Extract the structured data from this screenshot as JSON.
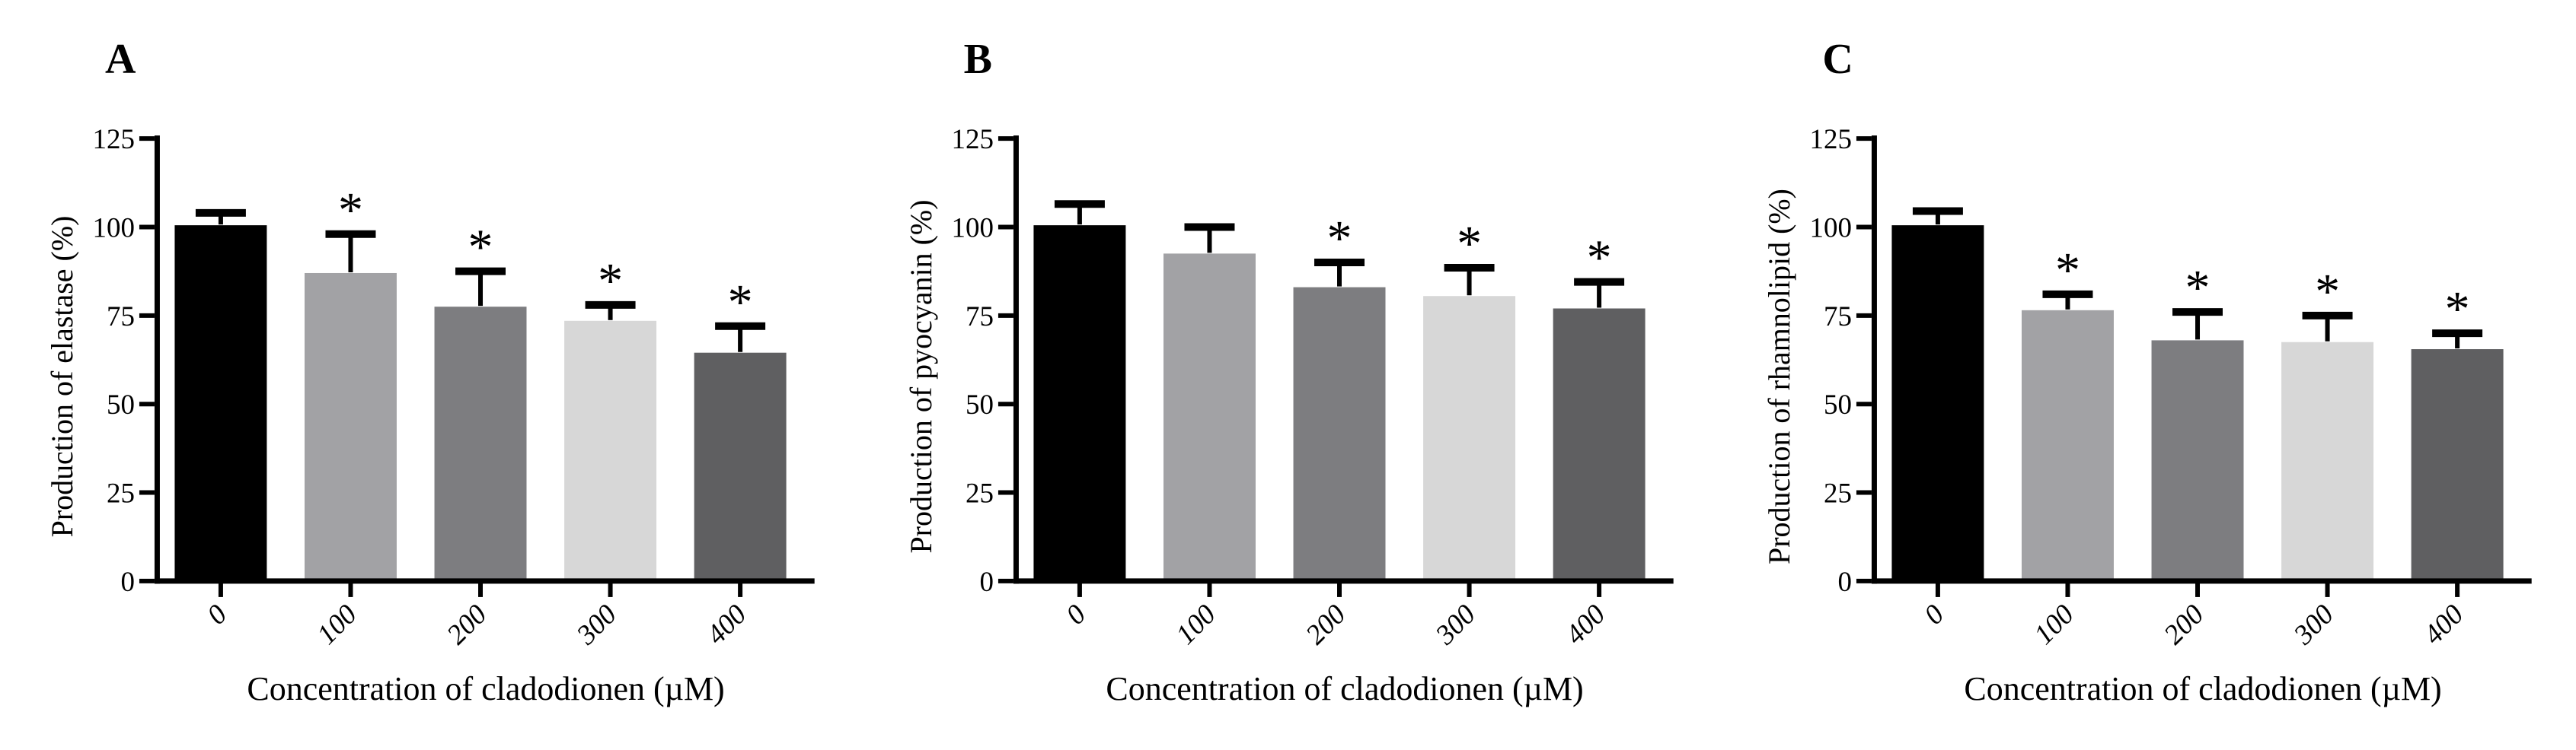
{
  "figure": {
    "background": "#ffffff",
    "significance_marker": "*"
  },
  "chart_data": [
    {
      "type": "bar",
      "panel_label": "A",
      "title": "",
      "ylabel": "Production of elastase (%)",
      "xlabel": "Concentration of cladodionen (µM)",
      "categories": [
        "0",
        "100",
        "200",
        "300",
        "400"
      ],
      "values": [
        100.5,
        87,
        77.5,
        73.5,
        64.5
      ],
      "error_plus": [
        3.5,
        11,
        10,
        4.5,
        7.5
      ],
      "significant": [
        false,
        true,
        true,
        true,
        true
      ],
      "sig_marker": "*",
      "ylim": [
        0,
        125
      ],
      "y_ticks": [
        0,
        25,
        50,
        75,
        100,
        125
      ],
      "bar_colors": [
        "#000000",
        "#a2a2a5",
        "#7d7d80",
        "#d7d7d7",
        "#5f5f61"
      ],
      "grid": false,
      "legend": null
    },
    {
      "type": "bar",
      "panel_label": "B",
      "title": "",
      "ylabel": "Production of pyocyanin (%)",
      "xlabel": "Concentration of cladodionen (µM)",
      "categories": [
        "0",
        "100",
        "200",
        "300",
        "400"
      ],
      "values": [
        100.5,
        92.5,
        83,
        80.5,
        77
      ],
      "error_plus": [
        6,
        7.5,
        7,
        8,
        7.5
      ],
      "significant": [
        false,
        false,
        true,
        true,
        true
      ],
      "sig_marker": "*",
      "ylim": [
        0,
        125
      ],
      "y_ticks": [
        0,
        25,
        50,
        75,
        100,
        125
      ],
      "bar_colors": [
        "#000000",
        "#a2a2a5",
        "#7d7d80",
        "#d7d7d7",
        "#5f5f61"
      ],
      "grid": false,
      "legend": null
    },
    {
      "type": "bar",
      "panel_label": "C",
      "title": "",
      "ylabel": "Production of rhamnolipid (%)",
      "xlabel": "Concentration of cladodionen (µM)",
      "categories": [
        "0",
        "100",
        "200",
        "300",
        "400"
      ],
      "values": [
        100.5,
        76.5,
        68,
        67.5,
        65.5
      ],
      "error_plus": [
        4,
        4.5,
        8,
        7.5,
        4.5
      ],
      "significant": [
        false,
        true,
        true,
        true,
        true
      ],
      "sig_marker": "*",
      "ylim": [
        0,
        125
      ],
      "y_ticks": [
        0,
        25,
        50,
        75,
        100,
        125
      ],
      "bar_colors": [
        "#000000",
        "#a2a2a5",
        "#7d7d80",
        "#d7d7d7",
        "#5f5f61"
      ],
      "grid": false,
      "legend": null
    }
  ]
}
